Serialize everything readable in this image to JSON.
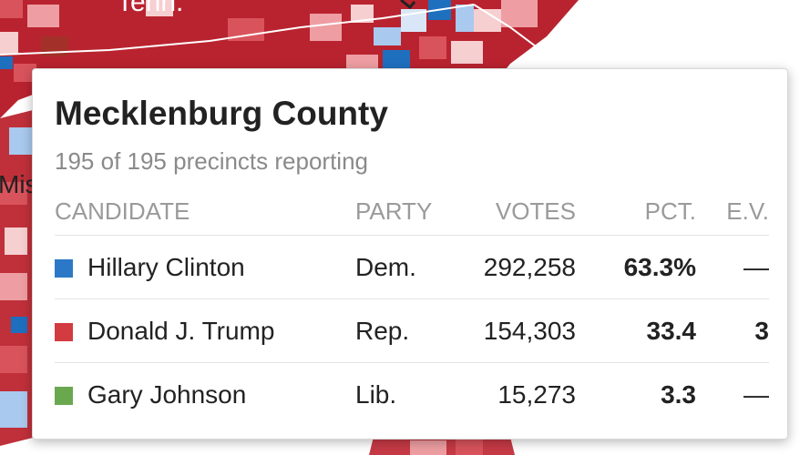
{
  "map": {
    "labels": {
      "tenn": "Tenn.",
      "miss": "Mis"
    },
    "colors": {
      "dem_dark": "#1f6fbf",
      "dem_light": "#a9c9ee",
      "dem_pale": "#d9e6f7",
      "rep_dark": "#b9232f",
      "rep_mid": "#d9535c",
      "rep_light": "#ee9ea3",
      "rep_pale": "#f6cfd1"
    }
  },
  "tooltip": {
    "county": "Mecklenburg County",
    "precincts": "195 of 195 precincts reporting",
    "headers": {
      "candidate": "CANDIDATE",
      "party": "PARTY",
      "votes": "VOTES",
      "pct": "PCT.",
      "ev": "E.V."
    },
    "rows": [
      {
        "name": "Hillary Clinton",
        "party": "Dem.",
        "votes": "292,258",
        "pct": "63.3%",
        "ev": "—",
        "color": "#2b79c6"
      },
      {
        "name": "Donald J. Trump",
        "party": "Rep.",
        "votes": "154,303",
        "pct": "33.4",
        "ev": "3",
        "color": "#d23b3f"
      },
      {
        "name": "Gary Johnson",
        "party": "Lib.",
        "votes": "15,273",
        "pct": "3.3",
        "ev": "—",
        "color": "#6aa84f"
      }
    ]
  }
}
